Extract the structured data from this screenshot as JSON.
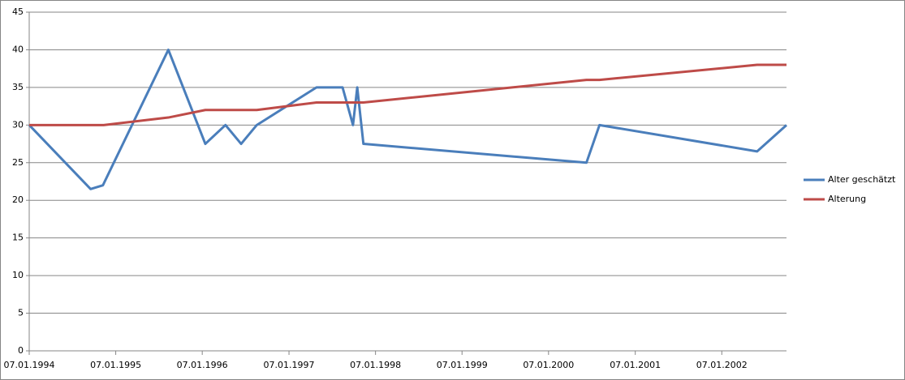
{
  "chart_data": {
    "type": "line",
    "xlim": [
      "1994-01-07",
      "2002-10-07"
    ],
    "xticks": [
      {
        "value": "1994-01-07",
        "label": "07.01.1994"
      },
      {
        "value": "1995-01-07",
        "label": "07.01.1995"
      },
      {
        "value": "1996-01-07",
        "label": "07.01.1996"
      },
      {
        "value": "1997-01-07",
        "label": "07.01.1997"
      },
      {
        "value": "1998-01-07",
        "label": "07.01.1998"
      },
      {
        "value": "1999-01-07",
        "label": "07.01.1999"
      },
      {
        "value": "2000-01-07",
        "label": "07.01.2000"
      },
      {
        "value": "2001-01-07",
        "label": "07.01.2001"
      },
      {
        "value": "2002-01-07",
        "label": "07.01.2002"
      }
    ],
    "ylim": [
      0,
      45
    ],
    "yticks": [
      0,
      5,
      10,
      15,
      20,
      25,
      30,
      35,
      40,
      45
    ],
    "grid": true,
    "legend": "right",
    "series": [
      {
        "name": "Alter geschätzt",
        "color": "#4a7ebb",
        "x": [
          "1994-01-07",
          "1994-09-23",
          "1994-11-14",
          "1995-08-17",
          "1996-01-20",
          "1996-04-14",
          "1996-06-19",
          "1996-08-24",
          "1997-05-03",
          "1997-08-21",
          "1997-10-04",
          "1997-10-22",
          "1997-11-17",
          "2000-06-15",
          "2000-08-09",
          "2002-06-05",
          "2002-10-07"
        ],
        "values": [
          30,
          21.5,
          22,
          40,
          27.5,
          30,
          27.5,
          30,
          35,
          35,
          30,
          35,
          27.5,
          25,
          30,
          26.5,
          30
        ]
      },
      {
        "name": "Alterung",
        "color": "#be4b48",
        "x": [
          "1994-01-07",
          "1994-11-17",
          "1995-08-17",
          "1996-01-20",
          "1996-08-24",
          "1997-05-03",
          "1997-11-17",
          "2000-06-15",
          "2000-08-09",
          "2002-06-05",
          "2002-10-07"
        ],
        "values": [
          30,
          30,
          31,
          32,
          32,
          33,
          33,
          36,
          36,
          38,
          38
        ]
      }
    ]
  }
}
